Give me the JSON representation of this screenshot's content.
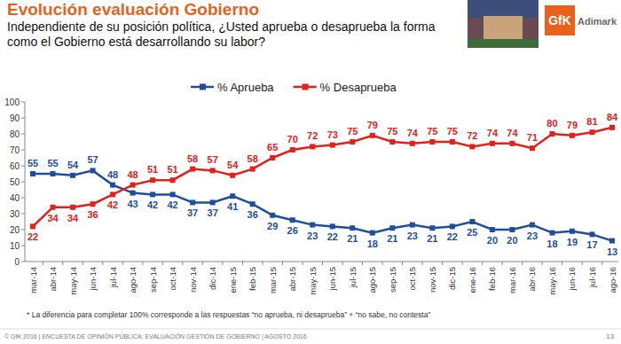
{
  "chart_data": {
    "type": "line",
    "title": "Evolución evaluación Gobierno",
    "subtitle": "Independiente de su posición política, ¿Usted aprueba o desaprueba la forma como el Gobierno está desarrollando su labor?",
    "categories": [
      "mar-14",
      "abr-14",
      "may-14",
      "jun-14",
      "jul-14",
      "ago-14",
      "sep-14",
      "oct-14",
      "nov-14",
      "dic-14",
      "ene-15",
      "feb-15",
      "mar-15",
      "abr-15",
      "may-15",
      "jun-15",
      "jul-15",
      "ago-15",
      "sep-15",
      "oct-15",
      "nov-15",
      "dic-15",
      "ene-16",
      "feb-16",
      "mar-16",
      "abr-16",
      "may-16",
      "jun-16",
      "jul-16",
      "ago-16"
    ],
    "series": [
      {
        "name": "% Aprueba",
        "color": "#1f4e9c",
        "marker": "square",
        "values": [
          55,
          55,
          54,
          57,
          48,
          43,
          42,
          42,
          37,
          37,
          41,
          36,
          29,
          26,
          23,
          22,
          21,
          18,
          21,
          23,
          21,
          22,
          25,
          20,
          20,
          23,
          18,
          19,
          17,
          13
        ]
      },
      {
        "name": "% Desaprueba",
        "color": "#e3201b",
        "marker": "square",
        "values": [
          22,
          34,
          34,
          36,
          42,
          48,
          51,
          51,
          58,
          57,
          54,
          58,
          65,
          70,
          72,
          73,
          75,
          79,
          75,
          74,
          75,
          75,
          72,
          74,
          74,
          71,
          80,
          79,
          81,
          84
        ]
      }
    ],
    "ylim": [
      0,
      100
    ],
    "yticks": [
      0,
      10,
      20,
      30,
      40,
      50,
      60,
      70,
      80,
      90,
      100
    ],
    "grid": false,
    "legend": "top",
    "data_labels": true,
    "annotations": [
      "* La diferencia para completar 100% corresponde a las respuestas “no aprueba, ni desaprueba” + “no sabe, no contesta”"
    ]
  },
  "footer": {
    "source": "© GfK 2016 | ENCUESTA DE OPINIÓN PÚBLICA: EVALUACIÓN GESTIÓN DE GOBIERNO | AGOSTO 2016",
    "page": "13"
  },
  "logo": {
    "brand": "GfK",
    "name": "Adimark"
  }
}
